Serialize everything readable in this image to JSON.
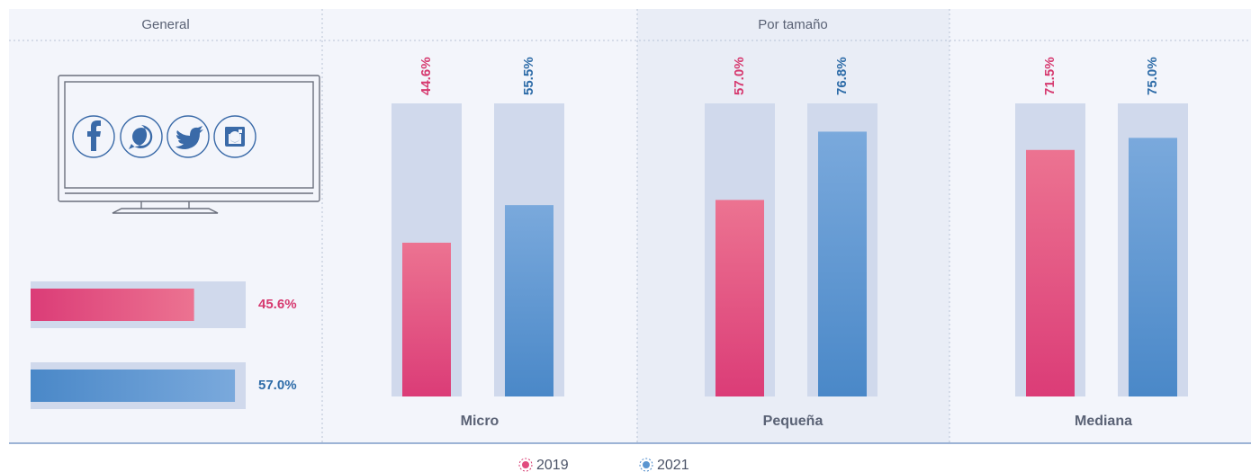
{
  "chart_data": [
    {
      "type": "hbar",
      "title": "General",
      "series": [
        {
          "color": "#e14c7f",
          "values": [
            45.6
          ],
          "value_labels": [
            "45.6%"
          ]
        },
        {
          "color": "#5a95d0",
          "values": [
            57.0
          ],
          "value_labels": [
            "57.0%"
          ]
        }
      ],
      "xlim": [
        0,
        60
      ]
    },
    {
      "type": "bar",
      "title": "Por tamaño",
      "categories": [
        "Micro",
        "Pequeña",
        "Mediana"
      ],
      "series": [
        {
          "name": "2019",
          "color": "#e14c7f",
          "values": [
            44.6,
            57.0,
            71.5
          ],
          "value_labels": [
            "44.6%",
            "57.0%",
            "71.5%"
          ]
        },
        {
          "name": "2021",
          "color": "#5a95d0",
          "values": [
            55.5,
            76.8,
            75.0
          ],
          "value_labels": [
            "55.5%",
            "76.8%",
            "75.0%"
          ]
        }
      ],
      "ylim": [
        0,
        85
      ]
    }
  ]
}
